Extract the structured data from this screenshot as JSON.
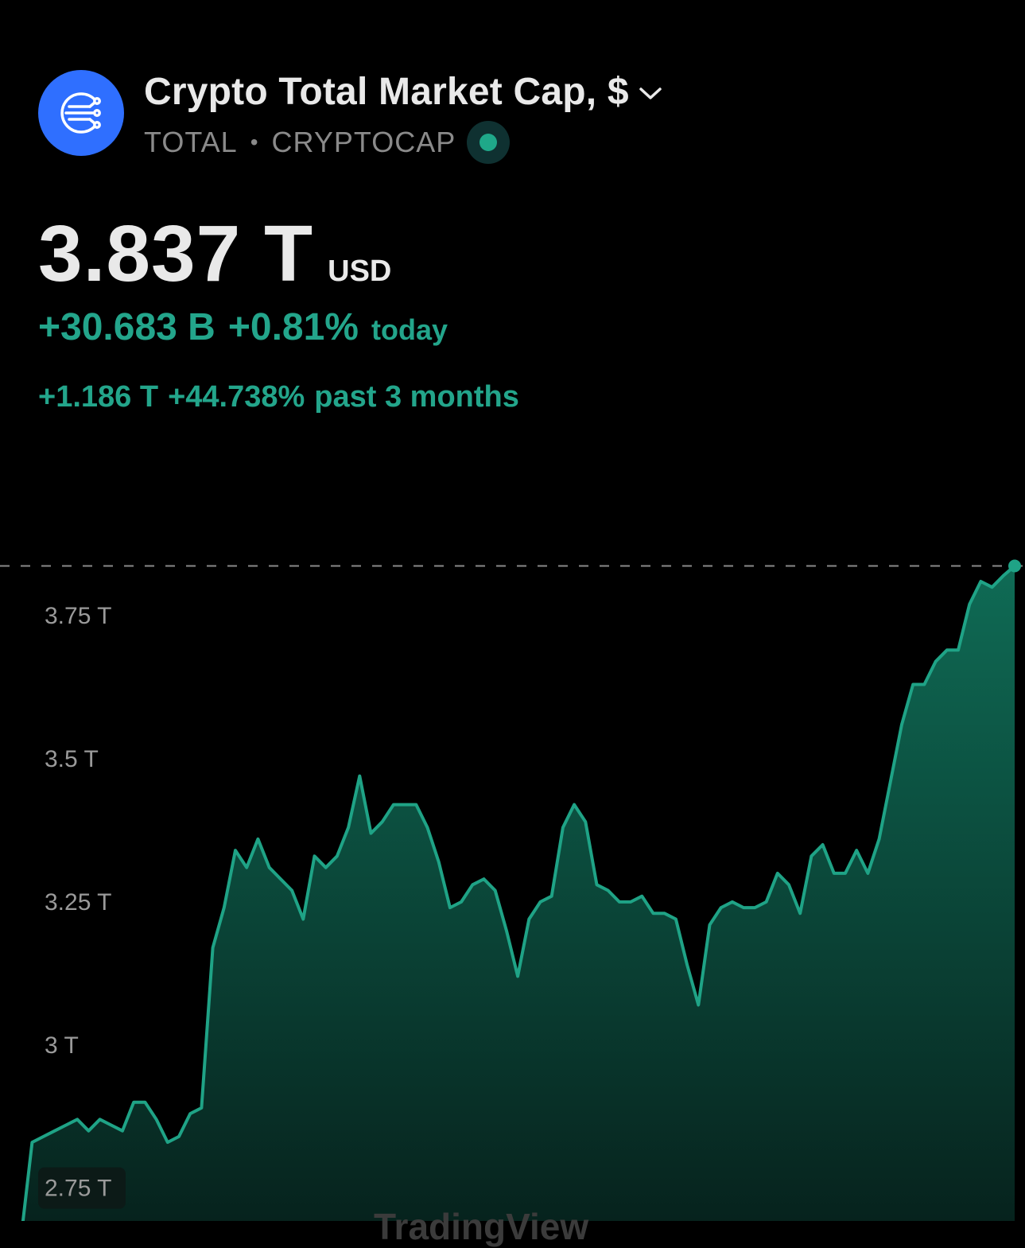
{
  "header": {
    "title": "Crypto Total Market Cap, $",
    "ticker": "TOTAL",
    "separator": "•",
    "exchange": "CRYPTOCAP",
    "logo_icon": "crypto-network-icon",
    "chevron_icon": "chevron-down-icon",
    "live_status": "market-open-dot",
    "colors": {
      "logo_bg": "#2f6fff",
      "live_dot": "#1fa889"
    }
  },
  "price": {
    "value": "3.837 T",
    "currency": "USD",
    "change_abs": "+30.683 B",
    "change_pct": "+0.81%",
    "change_period": "today",
    "range_change_abs": "+1.186 T",
    "range_change_pct": "+44.738%",
    "range_label": "past 3 months",
    "colors": {
      "positive": "#23a58b",
      "text": "#e9e9e9",
      "muted": "#8a8a8a"
    }
  },
  "watermark": {
    "text": "TradingView"
  },
  "chart_data": {
    "type": "area",
    "ylabel": "",
    "xlabel": "",
    "y_ticks": [
      {
        "value": 3.75,
        "label": "3.75 T"
      },
      {
        "value": 3.5,
        "label": "3.5 T"
      },
      {
        "value": 3.25,
        "label": "3.25 T"
      },
      {
        "value": 3.0,
        "label": "3 T"
      },
      {
        "value": 2.75,
        "label": "2.75 T",
        "highlighted": true
      }
    ],
    "ylim": [
      2.63,
      3.86
    ],
    "last_value": 3.837,
    "last_value_line": "dashed",
    "grid": false,
    "colors": {
      "line": "#1fa386",
      "fill_top": "#0f6b55",
      "fill_bottom": "#06201b",
      "dashed": "#8a8a8a"
    },
    "series": [
      {
        "values": [
          2.65,
          2.66,
          2.83,
          2.84,
          2.85,
          2.86,
          2.87,
          2.85,
          2.87,
          2.86,
          2.85,
          2.9,
          2.9,
          2.87,
          2.83,
          2.84,
          2.88,
          2.89,
          3.17,
          3.24,
          3.34,
          3.31,
          3.36,
          3.31,
          3.29,
          3.27,
          3.22,
          3.33,
          3.31,
          3.33,
          3.38,
          3.47,
          3.37,
          3.39,
          3.42,
          3.42,
          3.42,
          3.38,
          3.32,
          3.24,
          3.25,
          3.28,
          3.29,
          3.27,
          3.2,
          3.12,
          3.22,
          3.25,
          3.26,
          3.38,
          3.42,
          3.39,
          3.28,
          3.27,
          3.25,
          3.25,
          3.26,
          3.23,
          3.23,
          3.22,
          3.14,
          3.07,
          3.21,
          3.24,
          3.25,
          3.24,
          3.24,
          3.25,
          3.3,
          3.28,
          3.23,
          3.33,
          3.35,
          3.3,
          3.3,
          3.34,
          3.3,
          3.36,
          3.46,
          3.56,
          3.63,
          3.63,
          3.67,
          3.69,
          3.69,
          3.77,
          3.81,
          3.8,
          3.82,
          3.837
        ]
      }
    ]
  }
}
